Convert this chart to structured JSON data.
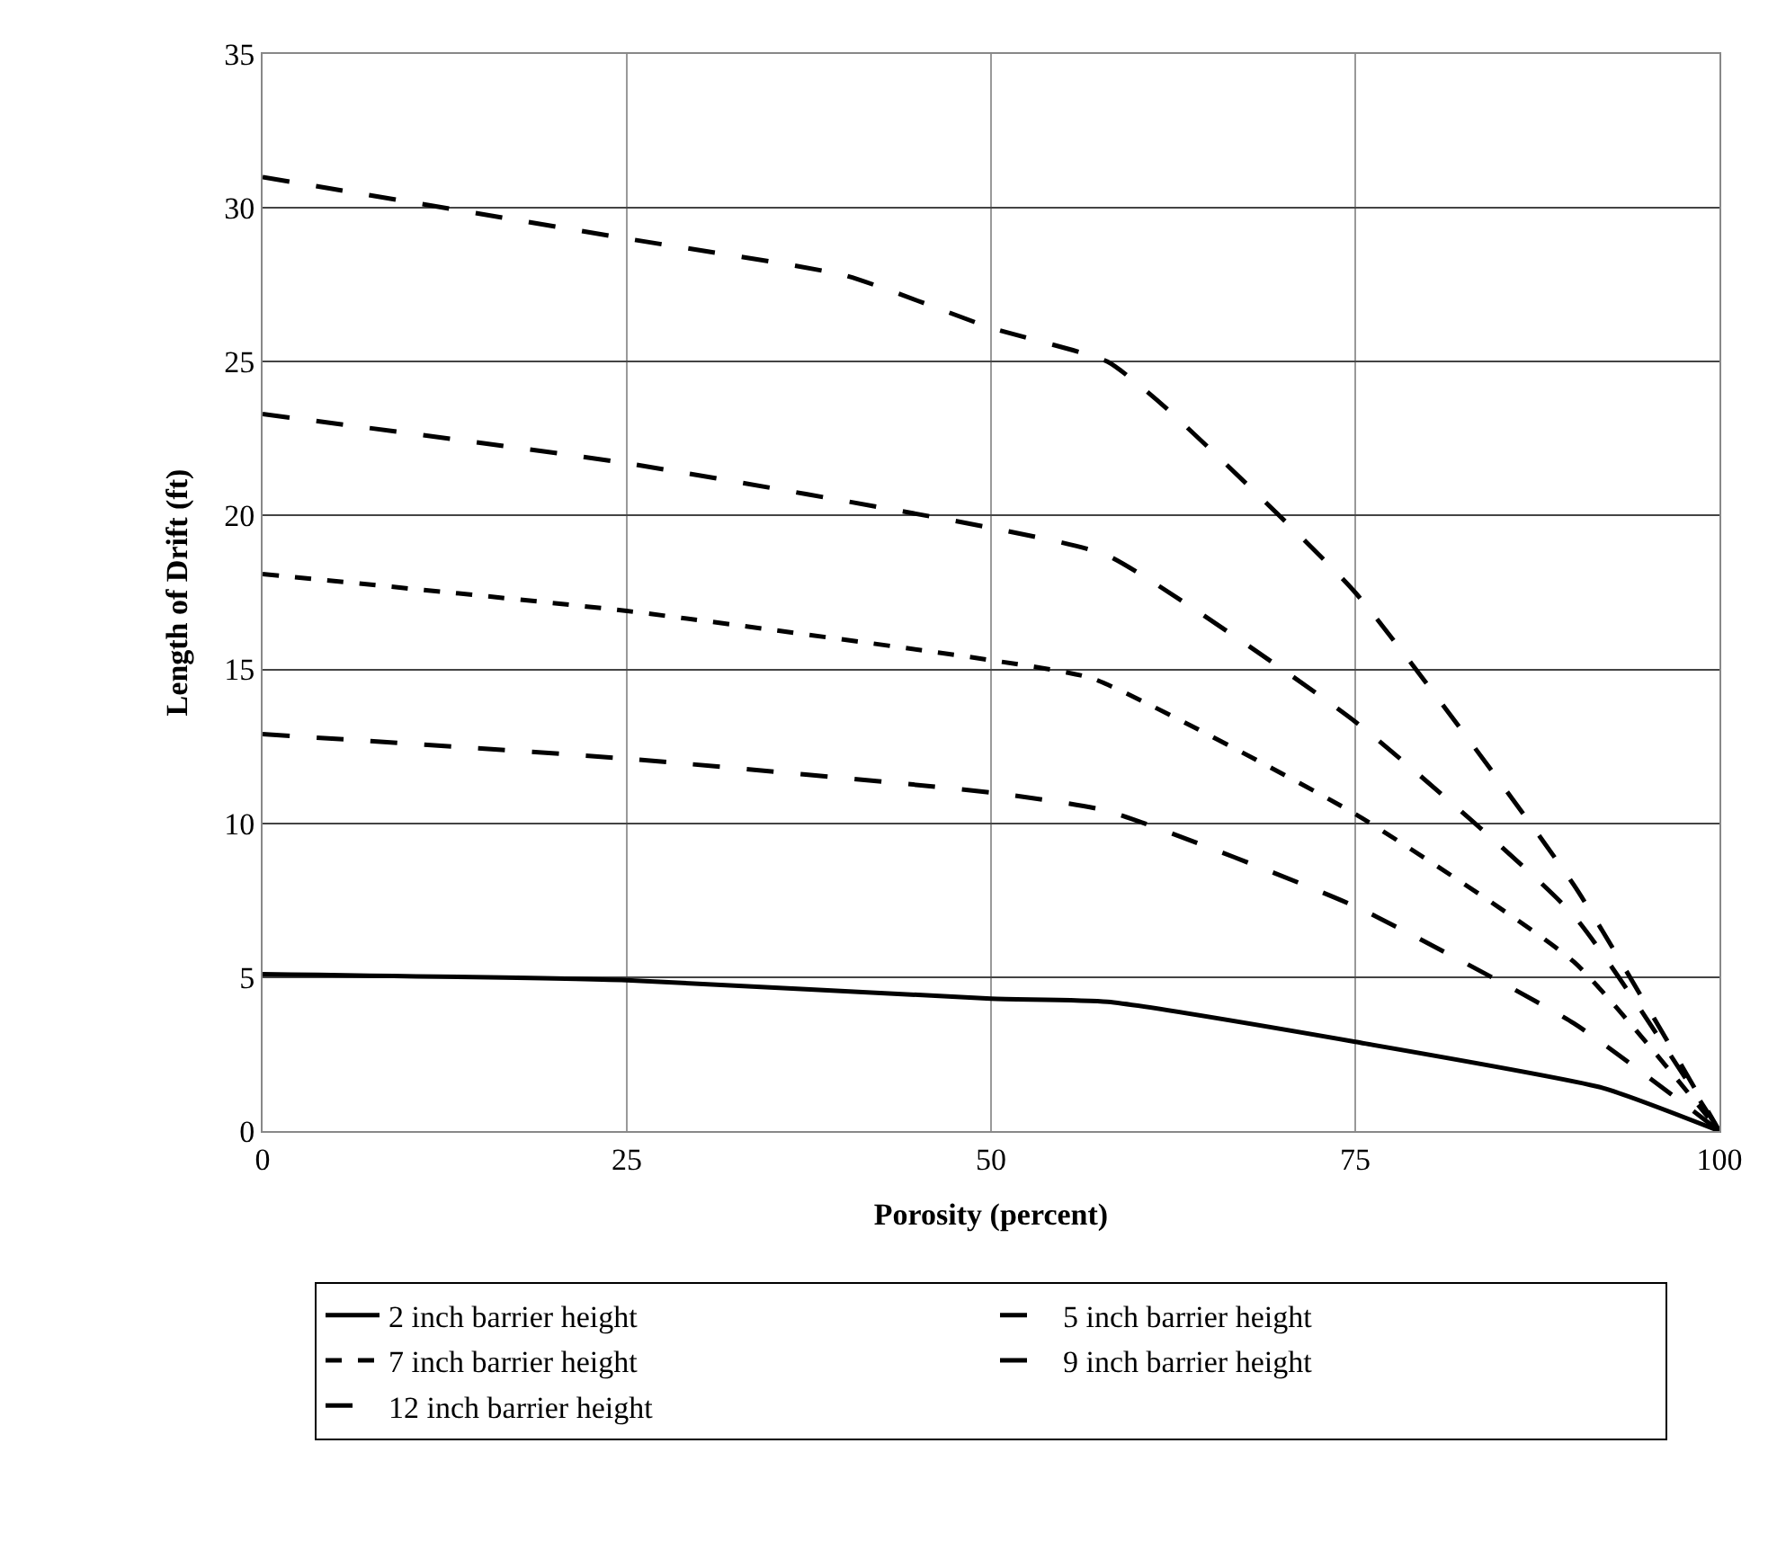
{
  "chart_data": {
    "type": "line",
    "xlabel": "Porosity (percent)",
    "ylabel": "Length of Drift (ft)",
    "xlim": [
      0,
      100
    ],
    "xticks": [
      0,
      25,
      50,
      75,
      100
    ],
    "ylim": [
      0,
      35
    ],
    "yticks": [
      0,
      5,
      10,
      15,
      20,
      25,
      30,
      35
    ],
    "grid": true,
    "legend": "bottom",
    "marker": "none",
    "series": [
      {
        "name": "2 inch barrier height",
        "color": "#000000",
        "line_style": "solid",
        "x": [
          0,
          25,
          50,
          58,
          75,
          92,
          100
        ],
        "values": [
          5.1,
          4.9,
          4.3,
          4.2,
          2.9,
          1.4,
          0
        ]
      },
      {
        "name": "5 inch barrier height",
        "color": "#000000",
        "line_style": "dashed",
        "x": [
          0,
          25,
          50,
          58,
          75,
          90,
          100
        ],
        "values": [
          12.9,
          12.1,
          11,
          10.4,
          7.3,
          3.5,
          0
        ]
      },
      {
        "name": "7 inch barrier height",
        "color": "#000000",
        "line_style": "dotted",
        "x": [
          0,
          25,
          50,
          57,
          75,
          90,
          100
        ],
        "values": [
          18.1,
          16.9,
          15.3,
          14.7,
          10.3,
          5.5,
          0
        ]
      },
      {
        "name": "9 inch barrier height",
        "color": "#000000",
        "line_style": "dashed",
        "x": [
          0,
          25,
          50,
          58,
          75,
          90,
          100
        ],
        "values": [
          23.3,
          21.7,
          19.6,
          18.7,
          13.3,
          7,
          0
        ]
      },
      {
        "name": "12 inch barrier height",
        "color": "#000000",
        "line_style": "dashed",
        "x": [
          0,
          25,
          40,
          50,
          58,
          62,
          75,
          90,
          100
        ],
        "values": [
          31,
          29,
          27.8,
          26.1,
          25,
          23.5,
          17.5,
          8,
          0
        ]
      }
    ]
  }
}
